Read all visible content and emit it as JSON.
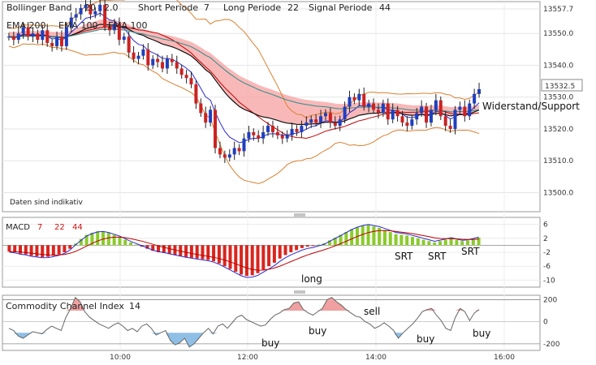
{
  "price_panel": {
    "legend": [
      {
        "text": "Bollinger Band"
      },
      {
        "text": "20"
      },
      {
        "text": "2.0"
      },
      {
        "text": "Short Periode"
      },
      {
        "text": "7"
      },
      {
        "text": "Long Periode"
      },
      {
        "text": "22"
      },
      {
        "text": "Signal Periode"
      },
      {
        "text": "44"
      }
    ],
    "legend2": [
      "EMA 200",
      "EMA 100",
      "EMA 100"
    ],
    "note": "Daten sind indikativ",
    "annotation": "Widerstand/Support",
    "last_price": "13532.5"
  },
  "macd_panel": {
    "title": "MACD",
    "params": [
      "7",
      "22",
      "44"
    ],
    "labels": [
      "long",
      "SRT",
      "SRT",
      "SRT"
    ]
  },
  "cci_panel": {
    "title": "Commodity Channel Index",
    "period": "14",
    "labels": [
      "sell",
      "buy",
      "buy",
      "buy",
      "buy"
    ]
  },
  "colors": {
    "up_candle": "#1f3fbf",
    "down_candle": "#cc2222",
    "macd_positive": "#8acb2a",
    "macd_negative": "#d9251e",
    "cloud_fill": "#f7a0a0",
    "band_fill": "#a8c8e8",
    "cci_over": "#f0a0a0",
    "cci_under": "#8fbfe6"
  },
  "chart_data": [
    {
      "type": "candlestick",
      "name": "price",
      "x_ticks": [
        "10:00",
        "12:00",
        "14:00",
        "16:00"
      ],
      "y_ticks": [
        13557.7,
        13550.0,
        13540.0,
        13530.0,
        13520.0,
        13510.0,
        13500.0
      ],
      "ylim": [
        13494,
        13560
      ],
      "close": [
        13549,
        13548,
        13550,
        13552,
        13549,
        13550,
        13548,
        13551,
        13547,
        13546,
        13549,
        13546,
        13552,
        13555,
        13556,
        13558,
        13559,
        13556,
        13557,
        13559,
        13552,
        13551,
        13553,
        13548,
        13549,
        13544,
        13542,
        13543,
        13545,
        13540,
        13542,
        13541,
        13539,
        13542,
        13541,
        13539,
        13537,
        13536,
        13534,
        13528,
        13525,
        13522,
        13526,
        13514,
        13512,
        13511,
        13512,
        13514,
        13513,
        13517,
        13519,
        13518,
        13517,
        13519,
        13521,
        13519,
        13518,
        13517,
        13518,
        13520,
        13519,
        13521,
        13522,
        13523,
        13522,
        13524,
        13525,
        13522,
        13521,
        13523,
        13527,
        13530,
        13529,
        13531,
        13527,
        13528,
        13526,
        13525,
        13528,
        13523,
        13526,
        13524,
        13522,
        13521,
        13523,
        13525,
        13527,
        13522,
        13526,
        13529,
        13524,
        13521,
        13520,
        13526,
        13527,
        13524,
        13528,
        13531,
        13532.5
      ]
    },
    {
      "type": "bar",
      "name": "MACD",
      "y_ticks": [
        6,
        2,
        -2,
        -6,
        -10
      ],
      "ylim": [
        -12,
        8
      ],
      "values": [
        -1.8,
        -2,
        -2.4,
        -2.6,
        -3,
        -3.2,
        -3.4,
        -3.3,
        -3,
        -2.6,
        -2,
        -1,
        0.5,
        1.8,
        3,
        3.6,
        4,
        4,
        3.6,
        3,
        2.4,
        1.6,
        0.8,
        0.2,
        -0.4,
        -1,
        -1.6,
        -2,
        -2.2,
        -2.5,
        -2.8,
        -3.1,
        -3.4,
        -3.6,
        -3.8,
        -4,
        -4.2,
        -4.6,
        -5.2,
        -6,
        -6.8,
        -7.6,
        -8.4,
        -8.8,
        -8.6,
        -8,
        -7,
        -6,
        -5,
        -3.8,
        -2.8,
        -2,
        -1.4,
        -0.8,
        -0.4,
        -0.2,
        0.2,
        0.6,
        1.4,
        2.2,
        3,
        3.8,
        4.6,
        5.2,
        5.6,
        5.8,
        5.4,
        5,
        4.4,
        3.8,
        3.2,
        3,
        2.8,
        2.4,
        2,
        1.6,
        1.2,
        0.8,
        1.2,
        1.6,
        2,
        1.6,
        1.2,
        1.4,
        1.8,
        2.2
      ]
    },
    {
      "type": "line",
      "name": "CCI",
      "y_ticks": [
        200,
        0,
        -200
      ],
      "ylim": [
        -260,
        240
      ],
      "values": [
        -60,
        -80,
        -130,
        -150,
        -120,
        -90,
        -100,
        -110,
        -70,
        -40,
        -60,
        -80,
        40,
        120,
        220,
        180,
        90,
        40,
        10,
        -20,
        -40,
        -60,
        -30,
        -10,
        -40,
        -80,
        -60,
        -90,
        -40,
        -20,
        -60,
        -120,
        -100,
        -80,
        -170,
        -210,
        -190,
        -150,
        -230,
        -200,
        -150,
        -100,
        -60,
        -110,
        -40,
        -20,
        -60,
        -10,
        40,
        60,
        20,
        0,
        -20,
        -40,
        -30,
        20,
        60,
        80,
        110,
        120,
        170,
        180,
        110,
        80,
        60,
        90,
        120,
        200,
        220,
        180,
        150,
        110,
        80,
        50,
        40,
        0,
        -20,
        -60,
        -40,
        -10,
        -40,
        -80,
        -150,
        -100,
        -60,
        -20,
        30,
        90,
        110,
        120,
        60,
        10,
        -60,
        -80,
        40,
        120,
        90,
        10,
        80,
        110
      ]
    }
  ]
}
